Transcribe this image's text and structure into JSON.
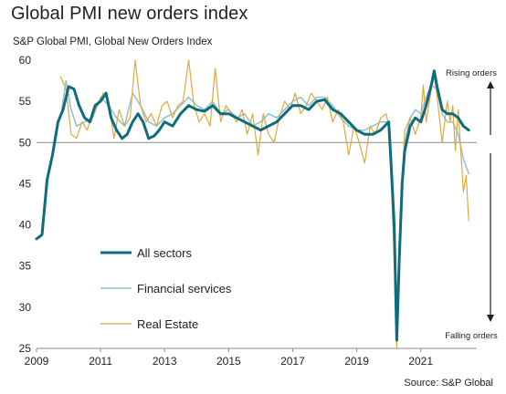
{
  "header": {
    "title": "Global PMI new orders index",
    "subtitle": "S&P Global PMI, Global New Orders Index",
    "source": "Source: S&P Global"
  },
  "chart_data": {
    "type": "line",
    "title": "Global PMI new orders index",
    "subtitle": "S&P Global PMI, Global New Orders Index",
    "xlabel": "",
    "ylabel": "",
    "xlim": [
      2009.0,
      2022.75
    ],
    "ylim": [
      25,
      60
    ],
    "x_ticks": [
      "2009",
      "2011",
      "2013",
      "2015",
      "2017",
      "2019",
      "2021"
    ],
    "y_ticks": [
      "25",
      "30",
      "35",
      "40",
      "45",
      "50",
      "55",
      "60"
    ],
    "reference_line": 50,
    "grid": false,
    "legend_position": "lower-left",
    "annotations": {
      "rising": "Rising orders",
      "falling": "Falling orders"
    },
    "series": [
      {
        "name": "All sectors",
        "color": "#0e6c7d",
        "points": [
          [
            2009.0,
            38.3
          ],
          [
            2009.17,
            38.8
          ],
          [
            2009.33,
            45.5
          ],
          [
            2009.5,
            48.5
          ],
          [
            2009.67,
            52.5
          ],
          [
            2009.83,
            54.0
          ],
          [
            2010.0,
            56.8
          ],
          [
            2010.17,
            56.5
          ],
          [
            2010.33,
            54.5
          ],
          [
            2010.5,
            53.0
          ],
          [
            2010.67,
            52.5
          ],
          [
            2010.83,
            54.5
          ],
          [
            2011.0,
            55.0
          ],
          [
            2011.17,
            56.0
          ],
          [
            2011.33,
            53.0
          ],
          [
            2011.5,
            51.5
          ],
          [
            2011.67,
            50.5
          ],
          [
            2011.83,
            51.0
          ],
          [
            2012.0,
            52.5
          ],
          [
            2012.17,
            53.5
          ],
          [
            2012.33,
            52.5
          ],
          [
            2012.5,
            50.5
          ],
          [
            2012.67,
            50.8
          ],
          [
            2012.83,
            51.5
          ],
          [
            2013.0,
            52.5
          ],
          [
            2013.25,
            52.0
          ],
          [
            2013.5,
            53.5
          ],
          [
            2013.75,
            54.5
          ],
          [
            2014.0,
            54.0
          ],
          [
            2014.25,
            53.8
          ],
          [
            2014.5,
            54.5
          ],
          [
            2014.75,
            53.5
          ],
          [
            2015.0,
            53.5
          ],
          [
            2015.25,
            53.0
          ],
          [
            2015.5,
            52.5
          ],
          [
            2015.75,
            52.0
          ],
          [
            2016.0,
            51.5
          ],
          [
            2016.25,
            52.0
          ],
          [
            2016.5,
            52.5
          ],
          [
            2016.75,
            53.5
          ],
          [
            2017.0,
            54.5
          ],
          [
            2017.25,
            54.5
          ],
          [
            2017.5,
            54.0
          ],
          [
            2017.75,
            55.0
          ],
          [
            2018.0,
            55.2
          ],
          [
            2018.25,
            54.0
          ],
          [
            2018.5,
            53.5
          ],
          [
            2018.75,
            52.5
          ],
          [
            2019.0,
            51.5
          ],
          [
            2019.25,
            51.0
          ],
          [
            2019.5,
            51.0
          ],
          [
            2019.75,
            51.5
          ],
          [
            2020.0,
            52.5
          ],
          [
            2020.08,
            47.0
          ],
          [
            2020.17,
            40.0
          ],
          [
            2020.25,
            26.0
          ],
          [
            2020.33,
            36.0
          ],
          [
            2020.42,
            45.0
          ],
          [
            2020.5,
            49.0
          ],
          [
            2020.67,
            52.0
          ],
          [
            2020.83,
            53.0
          ],
          [
            2021.0,
            52.5
          ],
          [
            2021.17,
            54.5
          ],
          [
            2021.33,
            57.0
          ],
          [
            2021.42,
            58.7
          ],
          [
            2021.5,
            57.0
          ],
          [
            2021.67,
            54.0
          ],
          [
            2021.83,
            53.5
          ],
          [
            2022.0,
            53.5
          ],
          [
            2022.17,
            53.0
          ],
          [
            2022.33,
            52.0
          ],
          [
            2022.5,
            51.5
          ]
        ]
      },
      {
        "name": "Financial services",
        "color": "#8fc1cf",
        "points": [
          [
            2009.75,
            53.0
          ],
          [
            2009.92,
            57.5
          ],
          [
            2010.08,
            54.0
          ],
          [
            2010.25,
            52.0
          ],
          [
            2010.5,
            52.5
          ],
          [
            2010.75,
            53.0
          ],
          [
            2011.0,
            55.5
          ],
          [
            2011.25,
            54.5
          ],
          [
            2011.5,
            53.0
          ],
          [
            2011.75,
            52.0
          ],
          [
            2012.0,
            56.0
          ],
          [
            2012.25,
            54.5
          ],
          [
            2012.5,
            52.5
          ],
          [
            2012.75,
            52.0
          ],
          [
            2013.0,
            53.0
          ],
          [
            2013.25,
            53.5
          ],
          [
            2013.5,
            54.5
          ],
          [
            2013.75,
            55.5
          ],
          [
            2014.0,
            54.5
          ],
          [
            2014.25,
            54.0
          ],
          [
            2014.5,
            55.0
          ],
          [
            2014.75,
            53.5
          ],
          [
            2015.0,
            54.0
          ],
          [
            2015.25,
            53.0
          ],
          [
            2015.5,
            53.5
          ],
          [
            2015.75,
            52.0
          ],
          [
            2016.0,
            52.5
          ],
          [
            2016.25,
            53.5
          ],
          [
            2016.5,
            53.0
          ],
          [
            2016.75,
            54.0
          ],
          [
            2017.0,
            55.0
          ],
          [
            2017.25,
            55.5
          ],
          [
            2017.5,
            54.5
          ],
          [
            2017.75,
            55.5
          ],
          [
            2018.0,
            55.5
          ],
          [
            2018.25,
            54.5
          ],
          [
            2018.5,
            53.0
          ],
          [
            2018.75,
            52.0
          ],
          [
            2019.0,
            51.5
          ],
          [
            2019.25,
            51.5
          ],
          [
            2019.5,
            52.0
          ],
          [
            2019.75,
            52.5
          ],
          [
            2020.0,
            52.5
          ],
          [
            2020.08,
            46.0
          ],
          [
            2020.17,
            38.0
          ],
          [
            2020.25,
            28.0
          ],
          [
            2020.33,
            38.0
          ],
          [
            2020.42,
            46.0
          ],
          [
            2020.5,
            50.0
          ],
          [
            2020.67,
            53.0
          ],
          [
            2020.83,
            54.0
          ],
          [
            2021.0,
            53.5
          ],
          [
            2021.17,
            55.5
          ],
          [
            2021.33,
            57.0
          ],
          [
            2021.5,
            56.5
          ],
          [
            2021.67,
            53.5
          ],
          [
            2021.83,
            52.5
          ],
          [
            2022.0,
            52.5
          ],
          [
            2022.17,
            51.0
          ],
          [
            2022.33,
            48.0
          ],
          [
            2022.5,
            46.2
          ]
        ]
      },
      {
        "name": "Real Estate",
        "color": "#e1a73f",
        "points": [
          [
            2009.75,
            58.0
          ],
          [
            2009.92,
            56.5
          ],
          [
            2010.08,
            51.0
          ],
          [
            2010.25,
            50.5
          ],
          [
            2010.42,
            52.5
          ],
          [
            2010.58,
            51.5
          ],
          [
            2010.75,
            53.5
          ],
          [
            2010.92,
            54.5
          ],
          [
            2011.08,
            56.0
          ],
          [
            2011.25,
            55.0
          ],
          [
            2011.42,
            50.5
          ],
          [
            2011.58,
            54.0
          ],
          [
            2011.75,
            52.0
          ],
          [
            2011.92,
            53.0
          ],
          [
            2012.08,
            60.0
          ],
          [
            2012.25,
            54.5
          ],
          [
            2012.42,
            52.5
          ],
          [
            2012.58,
            53.5
          ],
          [
            2012.75,
            52.0
          ],
          [
            2012.92,
            54.5
          ],
          [
            2013.08,
            55.0
          ],
          [
            2013.25,
            53.0
          ],
          [
            2013.42,
            54.5
          ],
          [
            2013.58,
            55.0
          ],
          [
            2013.75,
            60.0
          ],
          [
            2013.92,
            54.5
          ],
          [
            2014.08,
            52.5
          ],
          [
            2014.25,
            53.5
          ],
          [
            2014.42,
            52.0
          ],
          [
            2014.58,
            59.0
          ],
          [
            2014.75,
            52.5
          ],
          [
            2014.92,
            54.5
          ],
          [
            2015.08,
            53.5
          ],
          [
            2015.25,
            52.5
          ],
          [
            2015.42,
            54.0
          ],
          [
            2015.58,
            51.0
          ],
          [
            2015.75,
            53.5
          ],
          [
            2015.92,
            48.5
          ],
          [
            2016.08,
            53.5
          ],
          [
            2016.25,
            51.0
          ],
          [
            2016.42,
            50.0
          ],
          [
            2016.58,
            53.0
          ],
          [
            2016.75,
            55.0
          ],
          [
            2016.92,
            54.0
          ],
          [
            2017.08,
            56.0
          ],
          [
            2017.25,
            53.5
          ],
          [
            2017.42,
            54.5
          ],
          [
            2017.58,
            56.0
          ],
          [
            2017.75,
            55.0
          ],
          [
            2017.92,
            54.0
          ],
          [
            2018.08,
            55.5
          ],
          [
            2018.25,
            52.5
          ],
          [
            2018.42,
            54.0
          ],
          [
            2018.58,
            52.5
          ],
          [
            2018.75,
            48.5
          ],
          [
            2018.92,
            52.0
          ],
          [
            2019.08,
            50.0
          ],
          [
            2019.25,
            47.5
          ],
          [
            2019.42,
            52.0
          ],
          [
            2019.58,
            51.0
          ],
          [
            2019.75,
            53.0
          ],
          [
            2019.92,
            53.5
          ],
          [
            2020.0,
            52.0
          ],
          [
            2020.08,
            45.0
          ],
          [
            2020.17,
            36.0
          ],
          [
            2020.25,
            25.0
          ],
          [
            2020.33,
            37.0
          ],
          [
            2020.42,
            45.0
          ],
          [
            2020.5,
            51.5
          ],
          [
            2020.67,
            53.0
          ],
          [
            2020.83,
            51.0
          ],
          [
            2021.0,
            53.0
          ],
          [
            2021.08,
            57.0
          ],
          [
            2021.17,
            52.5
          ],
          [
            2021.33,
            56.5
          ],
          [
            2021.42,
            58.0
          ],
          [
            2021.5,
            56.0
          ],
          [
            2021.67,
            50.0
          ],
          [
            2021.83,
            55.0
          ],
          [
            2021.92,
            52.5
          ],
          [
            2022.0,
            54.5
          ],
          [
            2022.08,
            49.0
          ],
          [
            2022.17,
            54.0
          ],
          [
            2022.33,
            44.0
          ],
          [
            2022.42,
            46.0
          ],
          [
            2022.5,
            40.5
          ]
        ]
      }
    ]
  }
}
